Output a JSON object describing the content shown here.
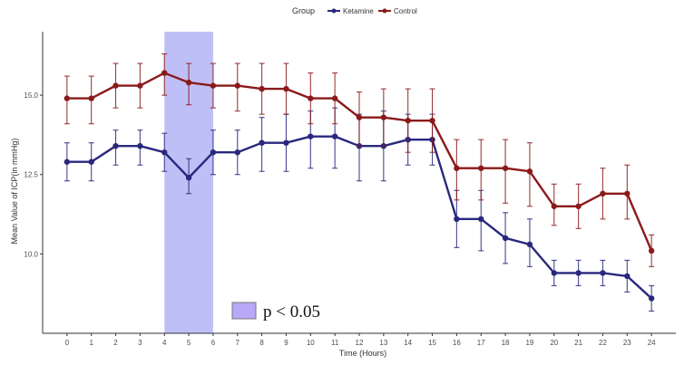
{
  "chart_data": {
    "type": "line",
    "title": "",
    "xlabel": "Time  (Hours)",
    "ylabel": "Mean Value of ICP(in mmHg)",
    "x": [
      0,
      1,
      2,
      3,
      4,
      5,
      6,
      7,
      8,
      9,
      10,
      11,
      12,
      13,
      14,
      15,
      16,
      17,
      18,
      19,
      20,
      21,
      22,
      23,
      24
    ],
    "xlim": [
      -1,
      25
    ],
    "ylim": [
      7.5,
      17.0
    ],
    "yticks": [
      10.0,
      12.5,
      15.0
    ],
    "ytick_labels": [
      "10.0",
      "12.5",
      "15.0"
    ],
    "grid": false,
    "legend": {
      "title": "Group",
      "placement": "top-center",
      "entries": [
        "Ketamine",
        "Control"
      ]
    },
    "series": [
      {
        "name": "Ketamine",
        "color": "#28287f",
        "values": [
          12.9,
          12.9,
          13.4,
          13.4,
          13.2,
          12.4,
          13.2,
          13.2,
          13.5,
          13.5,
          13.7,
          13.7,
          13.4,
          13.4,
          13.6,
          13.6,
          11.1,
          11.1,
          10.5,
          10.3,
          9.4,
          9.4,
          9.4,
          9.3,
          8.6
        ],
        "lower": [
          12.3,
          12.3,
          12.8,
          12.8,
          12.6,
          11.9,
          12.5,
          12.5,
          12.6,
          12.6,
          12.7,
          12.7,
          12.3,
          12.3,
          12.8,
          12.8,
          10.2,
          10.1,
          9.7,
          9.6,
          9.0,
          9.0,
          9.0,
          8.8,
          8.2
        ],
        "upper": [
          13.5,
          13.5,
          13.9,
          13.9,
          13.8,
          13.0,
          13.9,
          13.9,
          14.3,
          14.4,
          14.5,
          14.6,
          14.4,
          14.5,
          14.4,
          14.4,
          12.0,
          12.0,
          11.3,
          11.1,
          9.8,
          9.8,
          9.8,
          9.8,
          9.0
        ]
      },
      {
        "name": "Control",
        "color": "#8b1a1a",
        "values": [
          14.9,
          14.9,
          15.3,
          15.3,
          15.7,
          15.4,
          15.3,
          15.3,
          15.2,
          15.2,
          14.9,
          14.9,
          14.3,
          14.3,
          14.2,
          14.2,
          12.7,
          12.7,
          12.7,
          12.6,
          11.5,
          11.5,
          11.9,
          11.9,
          10.1
        ],
        "lower": [
          14.1,
          14.1,
          14.6,
          14.6,
          15.0,
          14.7,
          14.6,
          14.5,
          14.4,
          14.4,
          14.1,
          14.1,
          13.4,
          13.4,
          13.2,
          13.2,
          11.7,
          11.7,
          11.6,
          11.5,
          10.9,
          10.8,
          11.1,
          11.1,
          9.6
        ],
        "upper": [
          15.6,
          15.6,
          16.0,
          16.0,
          16.3,
          16.0,
          16.0,
          16.0,
          16.0,
          16.0,
          15.7,
          15.7,
          15.1,
          15.2,
          15.2,
          15.2,
          13.6,
          13.6,
          13.6,
          13.5,
          12.2,
          12.2,
          12.7,
          12.8,
          10.6
        ]
      }
    ],
    "highlight": {
      "x_start": 4,
      "x_end": 6,
      "color": "#b8b8f6",
      "label": "p < 0.05",
      "swatch_color": "#b8a8f8"
    }
  }
}
